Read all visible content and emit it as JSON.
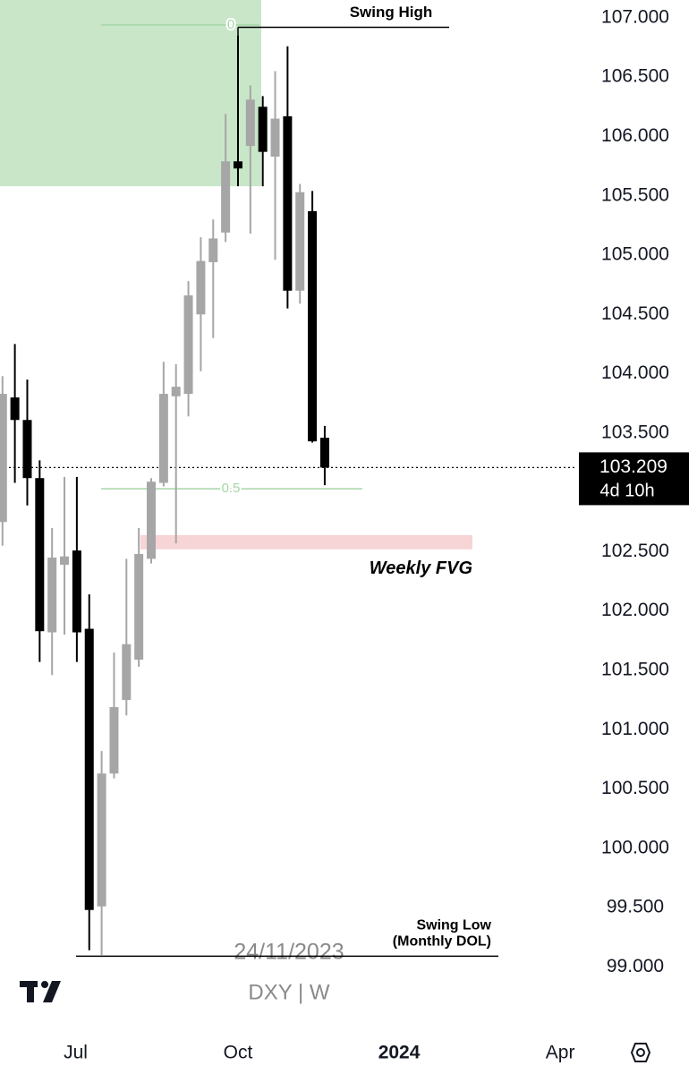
{
  "chart_data": {
    "type": "candlestick",
    "symbol": "DXY | W",
    "date_watermark": "24/11/2023",
    "categories": [
      null,
      null,
      null,
      null,
      null,
      null,
      null,
      null,
      null,
      null,
      null,
      null,
      null,
      null,
      null,
      null,
      null,
      null,
      null,
      null,
      null,
      null,
      null,
      null,
      null,
      null,
      null
    ],
    "open": [
      102.75,
      103.8,
      103.61,
      103.12,
      101.82,
      102.39,
      102.51,
      101.85,
      99.51,
      100.63,
      101.25,
      101.59,
      102.44,
      103.08,
      103.81,
      103.83,
      104.5,
      104.94,
      105.19,
      105.79,
      105.92,
      106.25,
      105.83,
      106.17,
      104.7,
      105.37,
      103.46
    ],
    "high": [
      103.98,
      104.25,
      103.95,
      103.27,
      102.7,
      103.13,
      103.13,
      102.14,
      100.82,
      101.65,
      102.44,
      102.7,
      103.12,
      104.1,
      104.08,
      104.78,
      105.15,
      105.3,
      106.19,
      106.85,
      106.43,
      106.34,
      106.55,
      106.76,
      105.6,
      105.54,
      103.56
    ],
    "low": [
      102.55,
      103.08,
      102.89,
      101.57,
      101.46,
      101.8,
      101.57,
      99.14,
      99.1,
      100.59,
      101.12,
      101.53,
      102.4,
      103.05,
      102.57,
      103.64,
      104.02,
      104.3,
      105.11,
      105.58,
      105.18,
      105.58,
      104.96,
      104.55,
      104.59,
      103.42,
      103.06
    ],
    "close": [
      103.83,
      103.61,
      103.12,
      101.83,
      102.45,
      102.46,
      101.82,
      99.48,
      100.63,
      101.19,
      101.72,
      102.48,
      103.09,
      103.83,
      103.89,
      104.66,
      104.95,
      105.14,
      105.79,
      105.73,
      106.31,
      105.87,
      106.15,
      104.7,
      105.53,
      103.43,
      103.209
    ],
    "up_color": "#a6a6a6",
    "down_color": "#000000",
    "ylim": [
      98.55,
      107.15
    ],
    "yticks": [
      {
        "value": 99,
        "label": "99.000"
      },
      {
        "value": 99.5,
        "label": "99.500"
      },
      {
        "value": 100,
        "label": "100.000"
      },
      {
        "value": 100.5,
        "label": "100.500"
      },
      {
        "value": 101,
        "label": "101.000"
      },
      {
        "value": 101.5,
        "label": "101.500"
      },
      {
        "value": 102,
        "label": "102.000"
      },
      {
        "value": 102.5,
        "label": "102.500"
      },
      {
        "value": 103.5,
        "label": "103.500"
      },
      {
        "value": 104,
        "label": "104.000"
      },
      {
        "value": 104.5,
        "label": "104.500"
      },
      {
        "value": 105,
        "label": "105.000"
      },
      {
        "value": 105.5,
        "label": "105.500"
      },
      {
        "value": 106,
        "label": "106.000"
      },
      {
        "value": 106.5,
        "label": "106.500"
      },
      {
        "value": 107,
        "label": "107.000"
      }
    ],
    "xlim": [
      -0.2,
      46
    ],
    "xticks": [
      {
        "value": 5.9,
        "label": "Jul"
      },
      {
        "value": 19,
        "label": "Oct"
      },
      {
        "value": 32,
        "label": "2024"
      },
      {
        "value": 45,
        "label": "Apr"
      }
    ],
    "last_price": 103.209,
    "countdown": "4d 10h",
    "zones": [
      {
        "low": 105.58,
        "high": 107.15,
        "color": "#c9e6c9"
      },
      {
        "label": "Weekly FVG",
        "low": 102.52,
        "high": 102.64,
        "color": "#f7d4d6"
      }
    ],
    "fib_levels": [
      {
        "level": 0,
        "price": 106.94
      },
      {
        "level": 0.5,
        "price": 103.03
      }
    ],
    "swing_high": {
      "label": "Swing High",
      "price": 106.92
    },
    "swing_low": {
      "label": [
        "Swing Low",
        "(Monthly DOL)"
      ],
      "price": 99.09
    }
  }
}
